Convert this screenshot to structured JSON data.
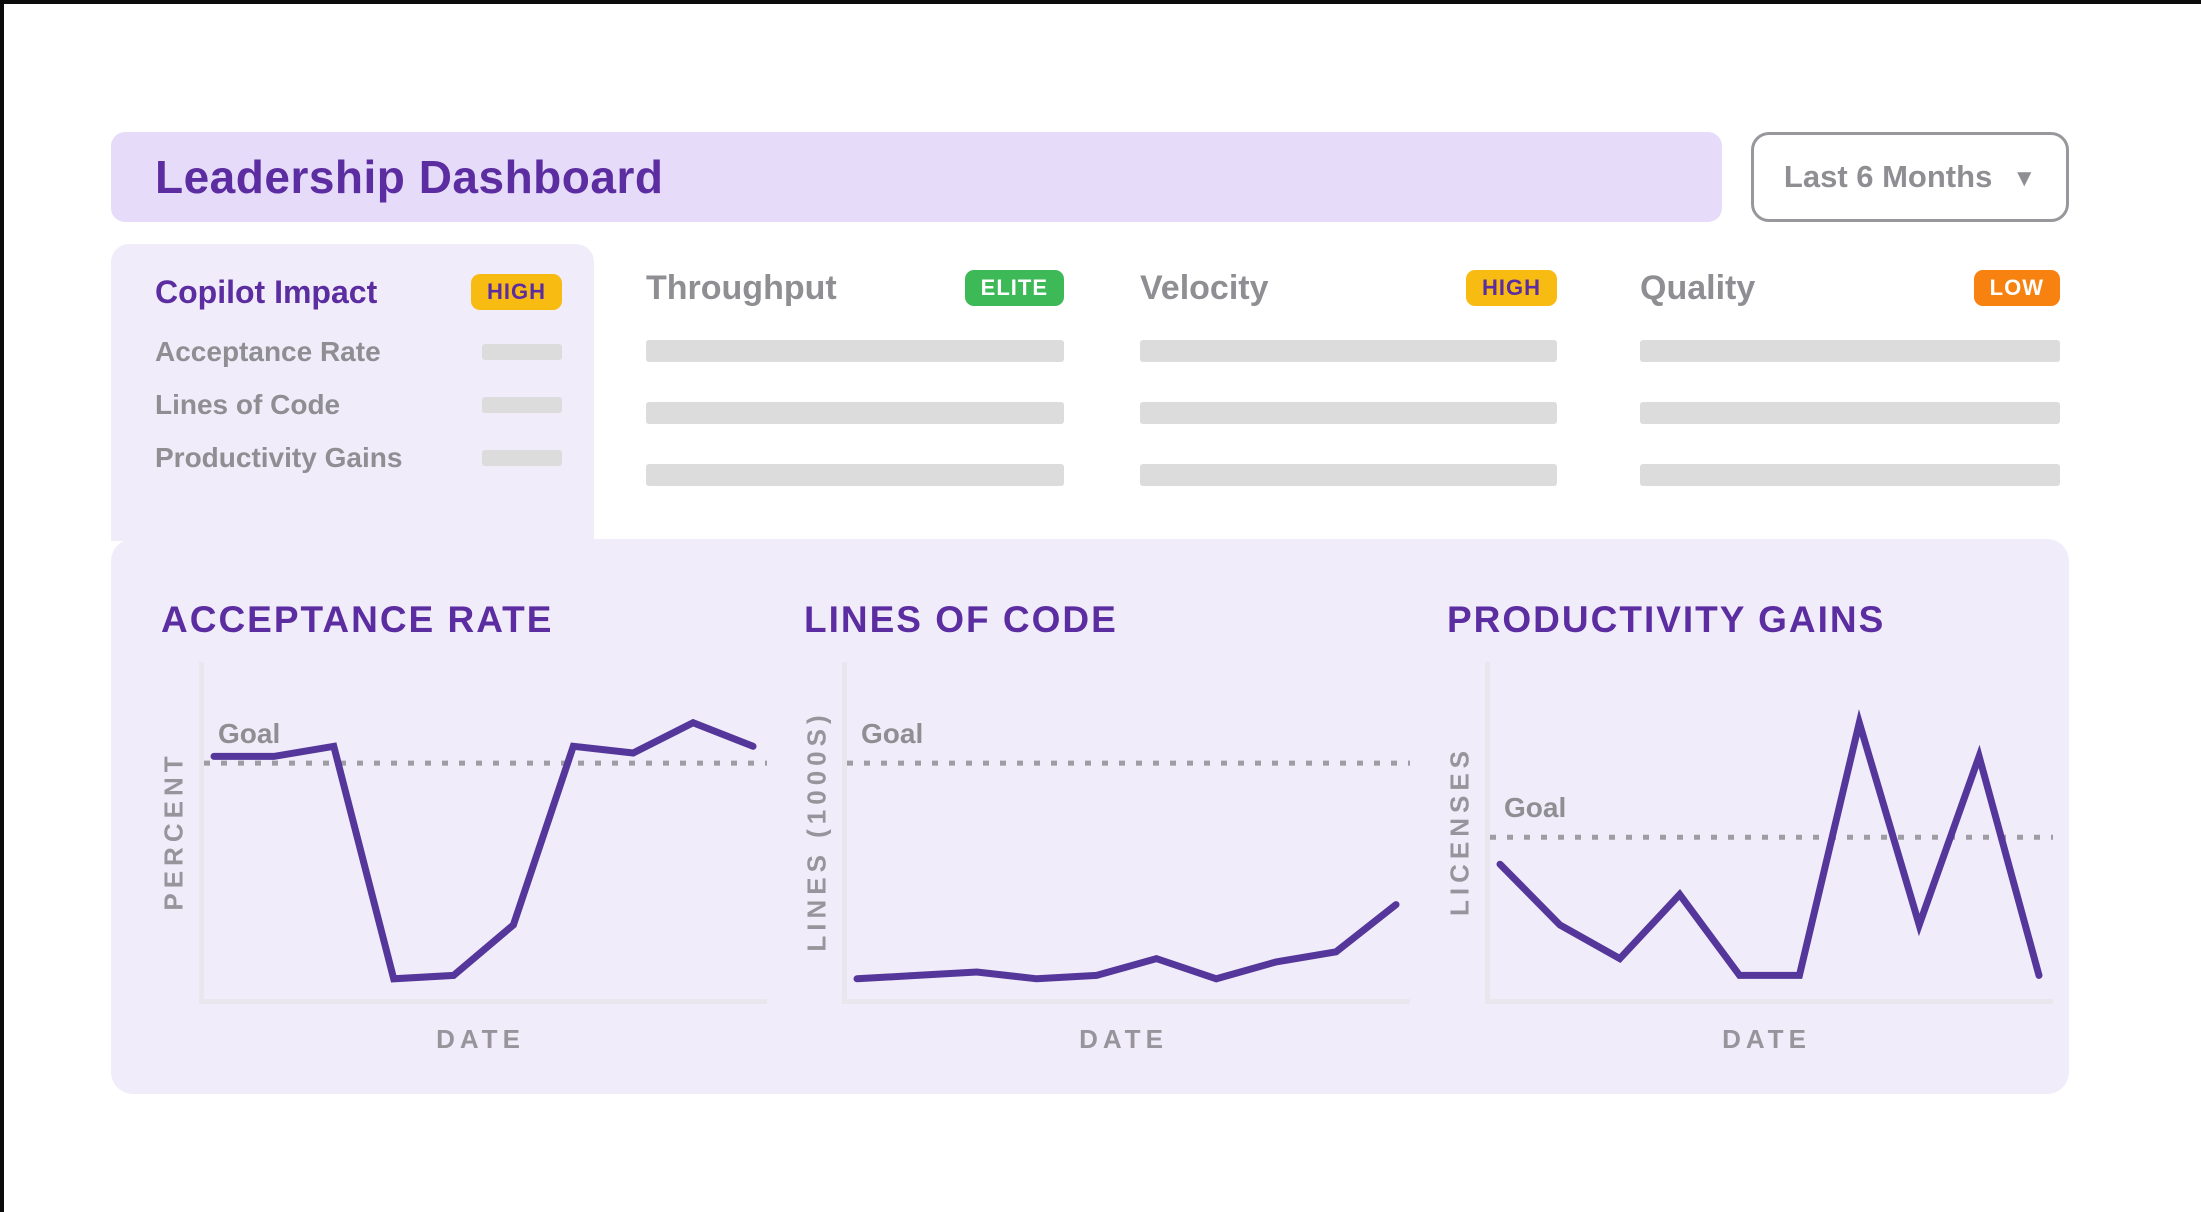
{
  "header": {
    "title": "Leadership Dashboard",
    "time_range_selector": {
      "value": "Last 6 Months",
      "icon": "chevron-down-icon"
    }
  },
  "copilot_tab": {
    "title": "Copilot Impact",
    "badge": {
      "label": "HIGH",
      "bg": "#F7BB12",
      "fg": "#5B2DA1"
    },
    "items": [
      "Acceptance Rate",
      "Lines of Code",
      "Productivity Gains"
    ],
    "skeleton_rows": 3
  },
  "sections": [
    {
      "title": "Throughput",
      "badge": {
        "label": "ELITE",
        "bg": "#3DB957",
        "fg": "#FFFFFF"
      },
      "skeleton_rows": 3
    },
    {
      "title": "Velocity",
      "badge": {
        "label": "HIGH",
        "bg": "#F7BB12",
        "fg": "#5B2DA1"
      },
      "skeleton_rows": 3
    },
    {
      "title": "Quality",
      "badge": {
        "label": "LOW",
        "bg": "#F8820F",
        "fg": "#FFFFFF"
      },
      "skeleton_rows": 3
    }
  ],
  "colors": {
    "accent_purple": "#5B2DA1",
    "line_purple": "#55379B",
    "banner_bg": "#E6DBF8",
    "panel_bg": "#F0ECF9",
    "muted_text": "#8E8E93",
    "skeleton_bar": "#DCDCDC",
    "axis": "#E9E6ED",
    "goal_dotted": "#A09CA4"
  },
  "chart_data": [
    {
      "type": "line",
      "title": "ACCEPTANCE RATE",
      "xlabel": "DATE",
      "ylabel": "PERCENT",
      "goal_label": "Goal",
      "goal": 70,
      "values": [
        72,
        72,
        75,
        6,
        7,
        22,
        75,
        73,
        82,
        75
      ],
      "ylim": [
        0,
        100
      ],
      "x_tick_labels": [],
      "grid": false,
      "legend": false
    },
    {
      "type": "line",
      "title": "LINES OF CODE",
      "xlabel": "DATE",
      "ylabel": "LINES (1000S)",
      "goal_label": "Goal",
      "goal": 70,
      "values": [
        6,
        7,
        8,
        6,
        7,
        12,
        6,
        11,
        14,
        28
      ],
      "ylim": [
        0,
        100
      ],
      "x_tick_labels": [],
      "grid": false,
      "legend": false
    },
    {
      "type": "line",
      "title": "PRODUCTIVITY GAINS",
      "xlabel": "DATE",
      "ylabel": "LICENSES",
      "goal_label": "Goal",
      "goal": 48,
      "values": [
        40,
        22,
        12,
        31,
        7,
        7,
        82,
        22,
        72,
        7
      ],
      "ylim": [
        0,
        100
      ],
      "x_tick_labels": [],
      "grid": false,
      "legend": false
    }
  ]
}
